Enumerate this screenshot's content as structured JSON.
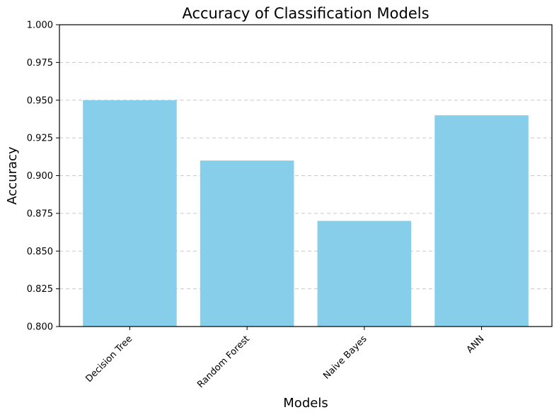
{
  "chart_data": {
    "type": "bar",
    "title": "Accuracy of Classification Models",
    "xlabel": "Models",
    "ylabel": "Accuracy",
    "categories": [
      "Decision Tree",
      "Random Forest",
      "Naive Bayes",
      "ANN"
    ],
    "values": [
      0.95,
      0.91,
      0.87,
      0.94
    ],
    "ylim": [
      0.8,
      1.0
    ],
    "yticks": [
      "0.800",
      "0.825",
      "0.850",
      "0.875",
      "0.900",
      "0.925",
      "0.950",
      "0.975",
      "1.000"
    ],
    "grid": "y-dashed",
    "bar_color": "#87ceeb",
    "x_tick_rotation": 45
  }
}
